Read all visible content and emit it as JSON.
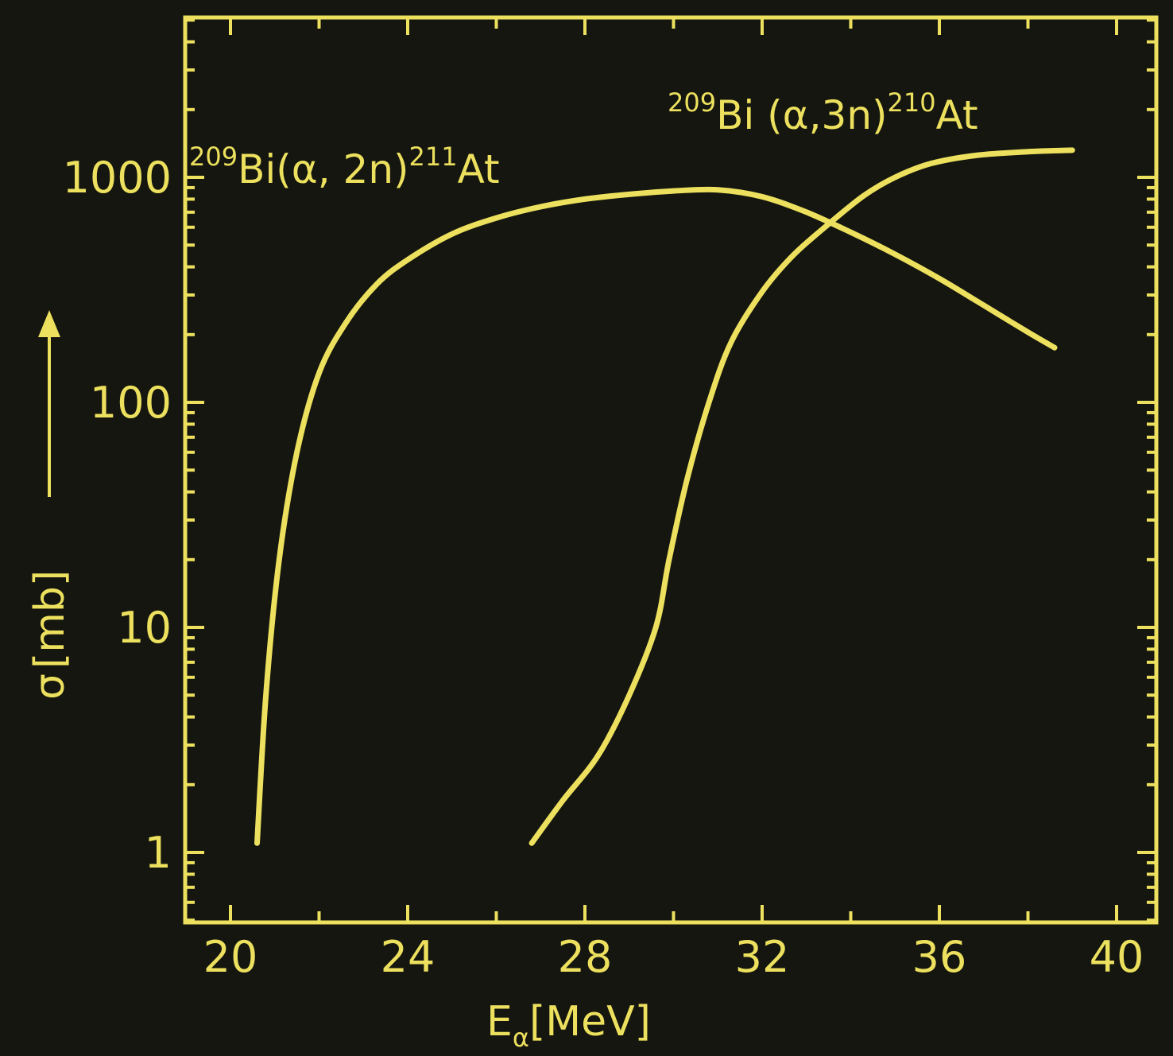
{
  "chart_data": {
    "type": "line",
    "title": "",
    "xlabel": {
      "main": "E",
      "subscript": "α",
      "unit": "[MeV]"
    },
    "ylabel": {
      "symbol": "σ",
      "unit": "[mb]"
    },
    "x_scale": "linear",
    "y_scale": "log",
    "xlim": [
      19,
      41
    ],
    "ylim": [
      0.5,
      4000
    ],
    "x_ticks": [
      20,
      24,
      28,
      32,
      36,
      40
    ],
    "y_ticks": [
      1,
      10,
      100,
      1000
    ],
    "x_tick_labels": [
      "20",
      "24",
      "28",
      "32",
      "36",
      "40"
    ],
    "y_tick_labels": [
      "1",
      "10",
      "100",
      "1000"
    ],
    "grid": false,
    "colors": {
      "background": "#14160f",
      "ink": "#ece05e"
    },
    "series": [
      {
        "label_parts": {
          "pre": "209",
          "a": "Bi(α, 2n)",
          "b": "211",
          "c": "At"
        },
        "x": [
          20.6,
          20.8,
          21.1,
          21.5,
          22.0,
          22.6,
          23.3,
          24.0,
          25.0,
          26.0,
          27.0,
          28.0,
          29.0,
          30.0,
          31.0,
          32.0,
          33.0,
          34.0,
          35.0,
          36.0,
          37.0,
          38.0,
          38.6
        ],
        "y": [
          1.1,
          5.0,
          20,
          60,
          135,
          225,
          335,
          430,
          560,
          660,
          740,
          800,
          840,
          870,
          880,
          820,
          700,
          570,
          455,
          355,
          270,
          205,
          175
        ]
      },
      {
        "label_parts": {
          "pre": "209",
          "a": "Bi (α,3n)",
          "b": "210",
          "c": "At"
        },
        "x": [
          26.8,
          27.5,
          28.3,
          29.0,
          29.6,
          29.9,
          30.3,
          30.8,
          31.3,
          32.0,
          32.7,
          33.5,
          34.3,
          35.0,
          35.8,
          36.8,
          38.0,
          39.0
        ],
        "y": [
          1.1,
          1.7,
          2.7,
          5.0,
          10,
          20,
          45,
          100,
          185,
          310,
          450,
          620,
          830,
          1000,
          1150,
          1250,
          1300,
          1320
        ]
      }
    ]
  }
}
